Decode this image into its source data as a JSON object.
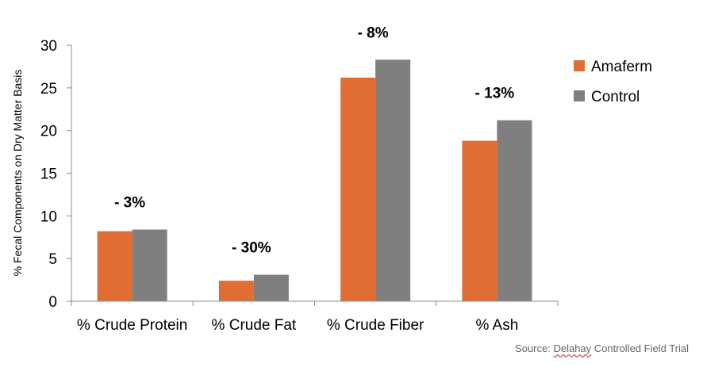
{
  "chart_data": {
    "type": "bar",
    "categories": [
      "% Crude Protein",
      "% Crude Fat",
      "% Crude Fiber",
      "% Ash"
    ],
    "series": [
      {
        "name": "Amaferm",
        "color": "#e06d34",
        "values": [
          8.2,
          2.4,
          26.2,
          18.8
        ]
      },
      {
        "name": "Control",
        "color": "#7f7f7f",
        "values": [
          8.4,
          3.1,
          28.3,
          21.2
        ]
      }
    ],
    "annotations": [
      "- 3%",
      "- 30%",
      "- 8%",
      "- 13%"
    ],
    "title": "",
    "xlabel": "",
    "ylabel": "% Fecal Components on Dry Matter Basis",
    "ylim": [
      0,
      30
    ],
    "yticks": [
      0,
      5,
      10,
      15,
      20,
      25,
      30
    ],
    "grid": false,
    "legend_position": "right"
  },
  "source": {
    "prefix": "Source: ",
    "underlined": "Delahay",
    "suffix": " Controlled Field Trial"
  }
}
